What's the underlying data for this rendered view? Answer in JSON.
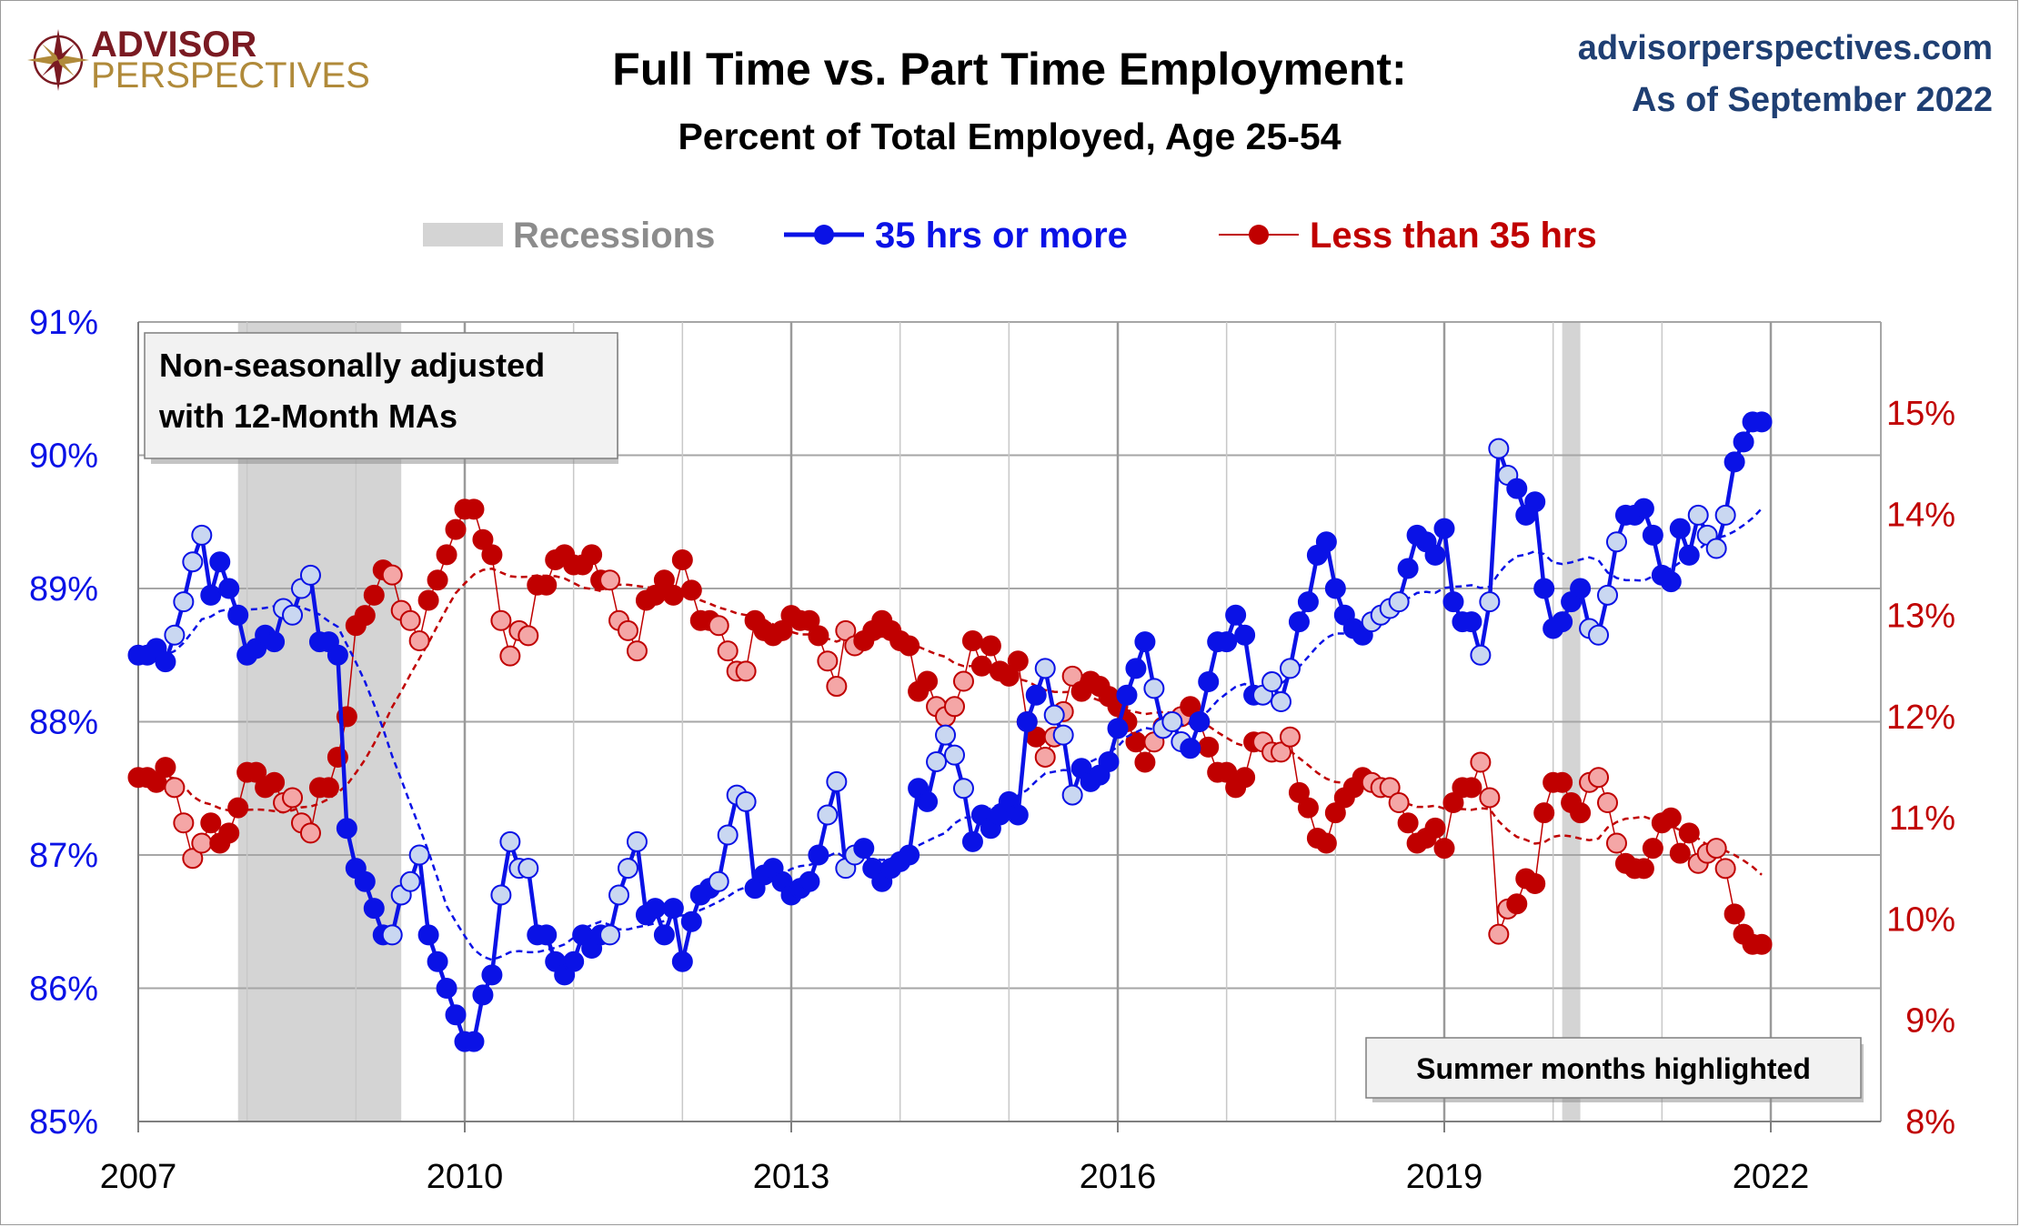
{
  "logo": {
    "line1": "ADVISOR",
    "line2": "PERSPECTIVES"
  },
  "header": {
    "site": "advisorperspectives.com",
    "as_of": "As of September 2022"
  },
  "colors": {
    "full_time": "#0a12e6",
    "full_time_summer": "#c9d7f1",
    "part_time": "#c00000",
    "part_time_summer": "#f4a6a6",
    "recession": "#d4d4d4",
    "grid": "#a6a6a6",
    "header_blue": "#1f3f73",
    "logo_red": "#7a1a22",
    "logo_gold": "#b08a3a"
  },
  "notes": {
    "nsa_line1": "Non-seasonally adjusted",
    "nsa_line2": "with 12-Month MAs",
    "summer": "Summer months highlighted"
  },
  "chart_data": {
    "type": "line",
    "title": "Full Time vs. Part Time Employment:",
    "subtitle": "Percent of Total Employed, Age 25-54",
    "legend": {
      "placement": "top-center",
      "recessions": "Recessions",
      "full": "35 hrs or more",
      "part": "Less than 35 hrs"
    },
    "x_axis": {
      "range": [
        "2007-01",
        "2022-12"
      ],
      "ticks": [
        "2007",
        "2010",
        "2013",
        "2016",
        "2019",
        "2022"
      ]
    },
    "y_left": {
      "range": [
        85,
        91
      ],
      "ticks": [
        "85%",
        "86%",
        "87%",
        "88%",
        "89%",
        "90%",
        "91%"
      ]
    },
    "y_right": {
      "range": [
        8,
        15.9
      ],
      "ticks": [
        "8%",
        "9%",
        "10%",
        "11%",
        "12%",
        "13%",
        "14%",
        "15%"
      ]
    },
    "grid": true,
    "recessions": [
      [
        "2007-12",
        "2009-06"
      ],
      [
        "2020-02",
        "2020-04"
      ]
    ],
    "summer_months_highlighted": [
      5,
      6,
      7,
      8
    ],
    "series": [
      {
        "name": "35 hrs or more",
        "axis": "left",
        "start": "2007-01",
        "values": [
          88.5,
          88.5,
          88.55,
          88.45,
          88.65,
          88.9,
          89.2,
          89.4,
          88.95,
          89.2,
          89.0,
          88.8,
          88.5,
          88.55,
          88.65,
          88.6,
          88.85,
          88.8,
          89.0,
          89.1,
          88.6,
          88.6,
          88.5,
          87.2,
          86.9,
          86.8,
          86.6,
          86.4,
          86.4,
          86.7,
          86.8,
          87.0,
          86.4,
          86.2,
          86.0,
          85.8,
          85.6,
          85.6,
          85.95,
          86.1,
          86.7,
          87.1,
          86.9,
          86.9,
          86.4,
          86.4,
          86.2,
          86.1,
          86.2,
          86.4,
          86.3,
          86.4,
          86.4,
          86.7,
          86.9,
          87.1,
          86.55,
          86.6,
          86.4,
          86.6,
          86.2,
          86.5,
          86.7,
          86.75,
          86.8,
          87.15,
          87.45,
          87.4,
          86.75,
          86.85,
          86.9,
          86.8,
          86.7,
          86.75,
          86.8,
          87.0,
          87.3,
          87.55,
          86.9,
          87.0,
          87.05,
          86.9,
          86.8,
          86.9,
          86.95,
          87.0,
          87.5,
          87.4,
          87.7,
          87.9,
          87.75,
          87.5,
          87.1,
          87.3,
          87.2,
          87.3,
          87.4,
          87.3,
          88.0,
          88.2,
          88.4,
          88.05,
          87.9,
          87.45,
          87.65,
          87.55,
          87.6,
          87.7,
          87.95,
          88.2,
          88.4,
          88.6,
          88.25,
          87.95,
          88.0,
          87.85,
          87.8,
          88.0,
          88.3,
          88.6,
          88.6,
          88.8,
          88.65,
          88.2,
          88.2,
          88.3,
          88.15,
          88.4,
          88.75,
          88.9,
          89.25,
          89.35,
          89.0,
          88.8,
          88.7,
          88.65,
          88.75,
          88.8,
          88.85,
          88.9,
          89.15,
          89.4,
          89.35,
          89.25,
          89.45,
          88.9,
          88.75,
          88.75,
          88.5,
          88.9,
          90.05,
          89.85,
          89.75,
          89.55,
          89.65,
          89.0,
          88.7,
          88.75,
          88.9,
          89.0,
          88.7,
          88.65,
          88.95,
          89.35,
          89.55,
          89.55,
          89.6,
          89.4,
          89.1,
          89.05,
          89.45,
          89.25,
          89.55,
          89.4,
          89.3,
          89.55,
          89.95,
          90.1,
          90.25,
          90.25
        ]
      },
      {
        "name": "Less than 35 hrs",
        "axis": "right",
        "start": "2007-01",
        "values": [
          11.4,
          11.4,
          11.35,
          11.5,
          11.3,
          10.95,
          10.6,
          10.75,
          10.95,
          10.75,
          10.85,
          11.1,
          11.45,
          11.45,
          11.3,
          11.35,
          11.15,
          11.2,
          10.95,
          10.85,
          11.3,
          11.3,
          11.6,
          12.0,
          12.9,
          13.0,
          13.2,
          13.45,
          13.4,
          13.05,
          12.95,
          12.75,
          13.15,
          13.35,
          13.6,
          13.85,
          14.05,
          14.05,
          13.75,
          13.6,
          12.95,
          12.6,
          12.85,
          12.8,
          13.3,
          13.3,
          13.55,
          13.6,
          13.5,
          13.5,
          13.6,
          13.35,
          13.35,
          12.95,
          12.85,
          12.65,
          13.15,
          13.2,
          13.35,
          13.2,
          13.55,
          13.25,
          12.95,
          12.95,
          12.9,
          12.65,
          12.45,
          12.45,
          12.95,
          12.85,
          12.8,
          12.85,
          13.0,
          12.95,
          12.95,
          12.8,
          12.55,
          12.3,
          12.85,
          12.7,
          12.75,
          12.85,
          12.95,
          12.85,
          12.75,
          12.7,
          12.25,
          12.35,
          12.1,
          12.0,
          12.1,
          12.35,
          12.75,
          12.5,
          12.7,
          12.45,
          12.4,
          12.55,
          11.95,
          11.8,
          11.6,
          11.8,
          12.05,
          12.4,
          12.25,
          12.35,
          12.3,
          12.2,
          12.1,
          11.95,
          11.75,
          11.55,
          11.75,
          11.9,
          11.95,
          12.0,
          12.1,
          11.95,
          11.7,
          11.45,
          11.45,
          11.3,
          11.4,
          11.75,
          11.75,
          11.65,
          11.65,
          11.8,
          11.25,
          11.1,
          10.8,
          10.75,
          11.05,
          11.2,
          11.3,
          11.4,
          11.35,
          11.3,
          11.3,
          11.15,
          10.95,
          10.75,
          10.8,
          10.9,
          10.7,
          11.15,
          11.3,
          11.3,
          11.55,
          11.2,
          9.85,
          10.1,
          10.15,
          10.4,
          10.35,
          11.05,
          11.35,
          11.35,
          11.15,
          11.05,
          11.35,
          11.4,
          11.15,
          10.75,
          10.55,
          10.5,
          10.5,
          10.7,
          10.95,
          11.0,
          10.65,
          10.85,
          10.55,
          10.65,
          10.7,
          10.5,
          10.05,
          9.85,
          9.75,
          9.75
        ]
      }
    ]
  }
}
